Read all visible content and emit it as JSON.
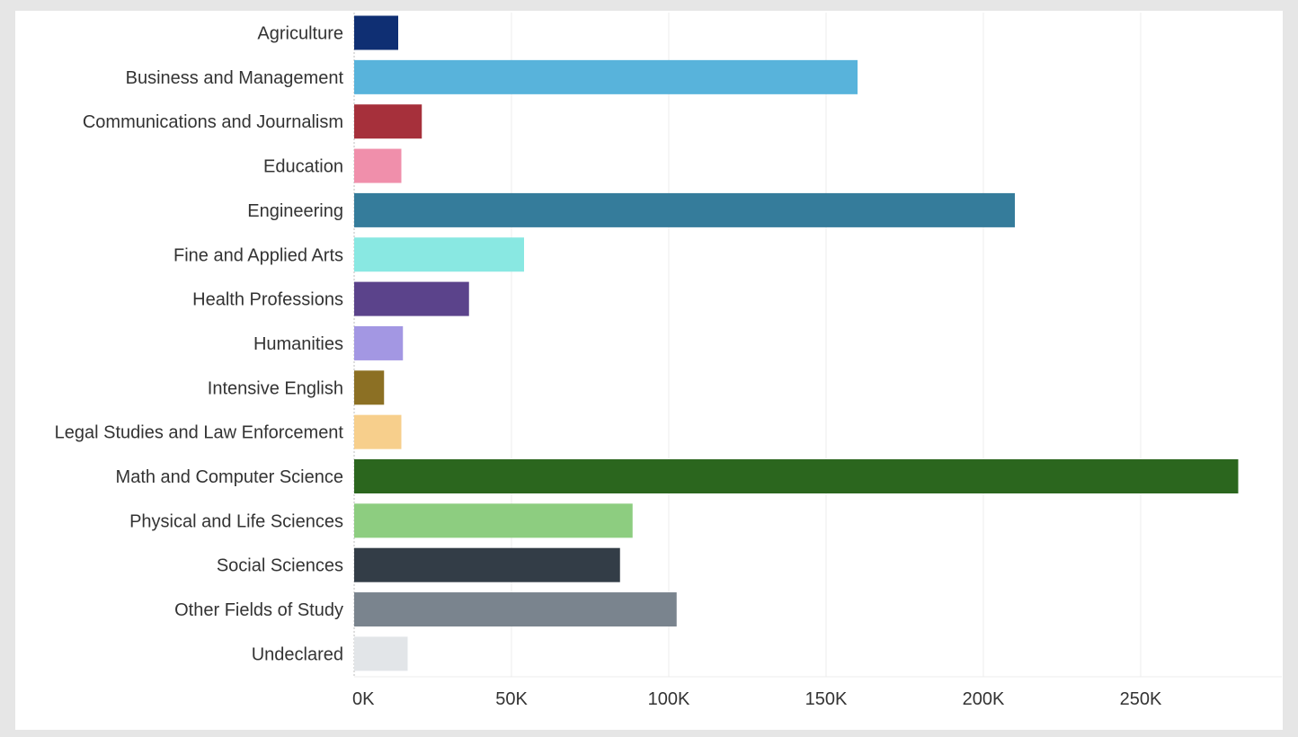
{
  "chart_data": {
    "type": "bar",
    "orientation": "horizontal",
    "title": "",
    "xlabel": "",
    "ylabel": "",
    "xlim": [
      0,
      300000
    ],
    "x_ticks": [
      0,
      50000,
      100000,
      150000,
      200000,
      250000
    ],
    "x_tick_labels": [
      "0K",
      "50K",
      "100K",
      "150K",
      "200K",
      "250K"
    ],
    "grid": "vertical",
    "legend": "none",
    "categories": [
      "Agriculture",
      "Business and Management",
      "Communications and Journalism",
      "Education",
      "Engineering",
      "Fine and Applied Arts",
      "Health Professions",
      "Humanities",
      "Intensive English",
      "Legal Studies and Law Enforcement",
      "Math and Computer Science",
      "Physical and Life Sciences",
      "Social Sciences",
      "Other Fields of Study",
      "Undeclared"
    ],
    "values": [
      14000,
      160000,
      21500,
      15000,
      210000,
      54000,
      36500,
      15500,
      9500,
      15000,
      281000,
      88500,
      84500,
      102500,
      17000
    ],
    "colors": [
      "#0f2f73",
      "#58b3db",
      "#a6303b",
      "#f08fab",
      "#357c9b",
      "#89e8e2",
      "#5b438b",
      "#a397e3",
      "#8c7024",
      "#f7cf8c",
      "#2b661e",
      "#8dcd80",
      "#333d47",
      "#7a848e",
      "#e2e5e8"
    ]
  }
}
